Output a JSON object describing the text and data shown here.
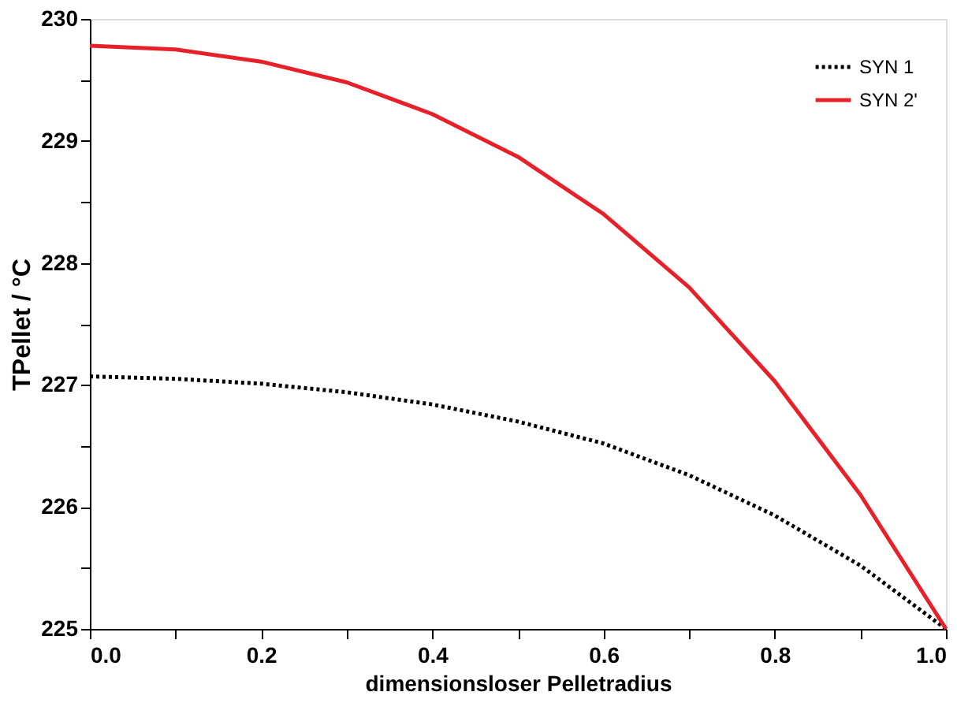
{
  "chart_data": {
    "type": "line",
    "xlabel": "dimensionsloser Pelletradius",
    "ylabel": "TPellet / °C",
    "x": [
      0,
      0.1,
      0.2,
      0.3,
      0.4,
      0.5,
      0.6,
      0.7,
      0.8,
      0.9,
      1.0
    ],
    "series": [
      {
        "name": "SYN 1",
        "color": "#000000",
        "line_style": "dotted",
        "values": [
          227.07,
          227.05,
          227.01,
          226.94,
          226.84,
          226.7,
          226.52,
          226.26,
          225.93,
          225.52,
          225.0
        ]
      },
      {
        "name": "SYN 2'",
        "color": "#e8202a",
        "line_style": "solid",
        "values": [
          229.78,
          229.75,
          229.65,
          229.48,
          229.22,
          228.87,
          228.4,
          227.8,
          227.03,
          226.1,
          225.0
        ]
      }
    ],
    "xlim": [
      0,
      1
    ],
    "ylim": [
      225,
      230
    ],
    "xticks": [
      {
        "value": 0,
        "label": "0.0"
      },
      {
        "value": 0.1,
        "label": null
      },
      {
        "value": 0.2,
        "label": "0.2"
      },
      {
        "value": 0.3,
        "label": null
      },
      {
        "value": 0.4,
        "label": "0.4"
      },
      {
        "value": 0.5,
        "label": null
      },
      {
        "value": 0.6,
        "label": "0.6"
      },
      {
        "value": 0.7,
        "label": null
      },
      {
        "value": 0.8,
        "label": "0.8"
      },
      {
        "value": 0.9,
        "label": null
      },
      {
        "value": 1.0,
        "label": "1.0"
      }
    ],
    "yticks": [
      225,
      {
        "value": 225.5,
        "label": null
      },
      226,
      {
        "value": 226.5,
        "label": null
      },
      227,
      {
        "value": 227.5,
        "label": null
      },
      228,
      {
        "value": 228.5,
        "label": null
      },
      229,
      {
        "value": 229.5,
        "label": null
      },
      230
    ],
    "grid": false,
    "legend": "top right",
    "marker": "none"
  }
}
